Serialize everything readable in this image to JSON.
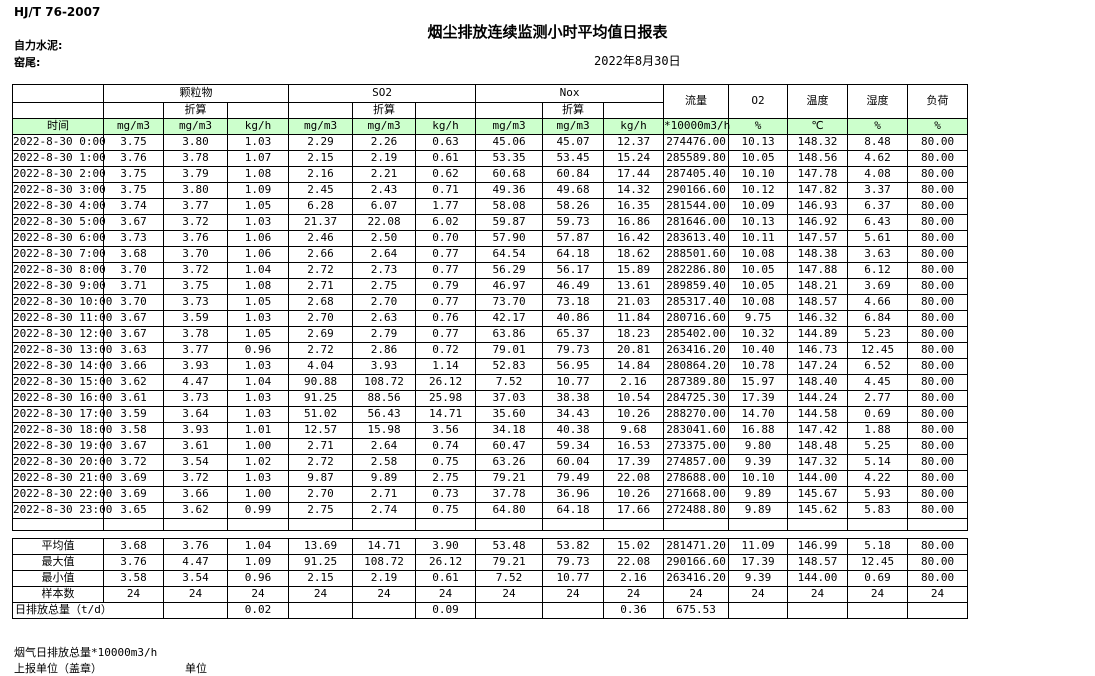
{
  "meta": {
    "standard": "HJ/T  76-2007",
    "title": "烟尘排放连续监测小时平均值日报表",
    "company": "自力水泥:",
    "location": "窑尾:",
    "date": "2022年8月30日"
  },
  "colors": {
    "header_green": "#ccffcc",
    "border": "#000000"
  },
  "table": {
    "time_header": "时间",
    "groups": [
      "颗粒物",
      "SO2",
      "Nox"
    ],
    "converted_label": "折算",
    "single_cols": [
      "流量",
      "O2",
      "温度",
      "湿度",
      "负荷"
    ],
    "units": [
      "mg/m3",
      "mg/m3",
      "kg/h",
      "mg/m3",
      "mg/m3",
      "kg/h",
      "mg/m3",
      "mg/m3",
      "kg/h",
      "*10000m3/h",
      "%",
      "℃",
      "%",
      "%"
    ],
    "rows": [
      {
        "time": "2022-8-30 0:00",
        "values": [
          "3.75",
          "3.80",
          "1.03",
          "2.29",
          "2.26",
          "0.63",
          "45.06",
          "45.07",
          "12.37",
          "274476.00",
          "10.13",
          "148.32",
          "8.48",
          "80.00"
        ]
      },
      {
        "time": "2022-8-30 1:00",
        "values": [
          "3.76",
          "3.78",
          "1.07",
          "2.15",
          "2.19",
          "0.61",
          "53.35",
          "53.45",
          "15.24",
          "285589.80",
          "10.05",
          "148.56",
          "4.62",
          "80.00"
        ]
      },
      {
        "time": "2022-8-30 2:00",
        "values": [
          "3.75",
          "3.79",
          "1.08",
          "2.16",
          "2.21",
          "0.62",
          "60.68",
          "60.84",
          "17.44",
          "287405.40",
          "10.10",
          "147.78",
          "4.08",
          "80.00"
        ]
      },
      {
        "time": "2022-8-30 3:00",
        "values": [
          "3.75",
          "3.80",
          "1.09",
          "2.45",
          "2.43",
          "0.71",
          "49.36",
          "49.68",
          "14.32",
          "290166.60",
          "10.12",
          "147.82",
          "3.37",
          "80.00"
        ]
      },
      {
        "time": "2022-8-30 4:00",
        "values": [
          "3.74",
          "3.77",
          "1.05",
          "6.28",
          "6.07",
          "1.77",
          "58.08",
          "58.26",
          "16.35",
          "281544.00",
          "10.09",
          "146.93",
          "6.37",
          "80.00"
        ]
      },
      {
        "time": "2022-8-30 5:00",
        "values": [
          "3.67",
          "3.72",
          "1.03",
          "21.37",
          "22.08",
          "6.02",
          "59.87",
          "59.73",
          "16.86",
          "281646.00",
          "10.13",
          "146.92",
          "6.43",
          "80.00"
        ]
      },
      {
        "time": "2022-8-30 6:00",
        "values": [
          "3.73",
          "3.76",
          "1.06",
          "2.46",
          "2.50",
          "0.70",
          "57.90",
          "57.87",
          "16.42",
          "283613.40",
          "10.11",
          "147.57",
          "5.61",
          "80.00"
        ]
      },
      {
        "time": "2022-8-30 7:00",
        "values": [
          "3.68",
          "3.70",
          "1.06",
          "2.66",
          "2.64",
          "0.77",
          "64.54",
          "64.18",
          "18.62",
          "288501.60",
          "10.08",
          "148.38",
          "3.63",
          "80.00"
        ]
      },
      {
        "time": "2022-8-30 8:00",
        "values": [
          "3.70",
          "3.72",
          "1.04",
          "2.72",
          "2.73",
          "0.77",
          "56.29",
          "56.17",
          "15.89",
          "282286.80",
          "10.05",
          "147.88",
          "6.12",
          "80.00"
        ]
      },
      {
        "time": "2022-8-30 9:00",
        "values": [
          "3.71",
          "3.75",
          "1.08",
          "2.71",
          "2.75",
          "0.79",
          "46.97",
          "46.49",
          "13.61",
          "289859.40",
          "10.05",
          "148.21",
          "3.69",
          "80.00"
        ]
      },
      {
        "time": "2022-8-30 10:00",
        "values": [
          "3.70",
          "3.73",
          "1.05",
          "2.68",
          "2.70",
          "0.77",
          "73.70",
          "73.18",
          "21.03",
          "285317.40",
          "10.08",
          "148.57",
          "4.66",
          "80.00"
        ]
      },
      {
        "time": "2022-8-30 11:00",
        "values": [
          "3.67",
          "3.59",
          "1.03",
          "2.70",
          "2.63",
          "0.76",
          "42.17",
          "40.86",
          "11.84",
          "280716.60",
          "9.75",
          "146.32",
          "6.84",
          "80.00"
        ]
      },
      {
        "time": "2022-8-30 12:00",
        "values": [
          "3.67",
          "3.78",
          "1.05",
          "2.69",
          "2.79",
          "0.77",
          "63.86",
          "65.37",
          "18.23",
          "285402.00",
          "10.32",
          "144.89",
          "5.23",
          "80.00"
        ]
      },
      {
        "time": "2022-8-30 13:00",
        "values": [
          "3.63",
          "3.77",
          "0.96",
          "2.72",
          "2.86",
          "0.72",
          "79.01",
          "79.73",
          "20.81",
          "263416.20",
          "10.40",
          "146.73",
          "12.45",
          "80.00"
        ]
      },
      {
        "time": "2022-8-30 14:00",
        "values": [
          "3.66",
          "3.93",
          "1.03",
          "4.04",
          "3.93",
          "1.14",
          "52.83",
          "56.95",
          "14.84",
          "280864.20",
          "10.78",
          "147.24",
          "6.52",
          "80.00"
        ]
      },
      {
        "time": "2022-8-30 15:00",
        "values": [
          "3.62",
          "4.47",
          "1.04",
          "90.88",
          "108.72",
          "26.12",
          "7.52",
          "10.77",
          "2.16",
          "287389.80",
          "15.97",
          "148.40",
          "4.45",
          "80.00"
        ]
      },
      {
        "time": "2022-8-30 16:00",
        "values": [
          "3.61",
          "3.73",
          "1.03",
          "91.25",
          "88.56",
          "25.98",
          "37.03",
          "38.38",
          "10.54",
          "284725.30",
          "17.39",
          "144.24",
          "2.77",
          "80.00"
        ]
      },
      {
        "time": "2022-8-30 17:00",
        "values": [
          "3.59",
          "3.64",
          "1.03",
          "51.02",
          "56.43",
          "14.71",
          "35.60",
          "34.43",
          "10.26",
          "288270.00",
          "14.70",
          "144.58",
          "0.69",
          "80.00"
        ]
      },
      {
        "time": "2022-8-30 18:00",
        "values": [
          "3.58",
          "3.93",
          "1.01",
          "12.57",
          "15.98",
          "3.56",
          "34.18",
          "40.38",
          "9.68",
          "283041.60",
          "16.88",
          "147.42",
          "1.88",
          "80.00"
        ]
      },
      {
        "time": "2022-8-30 19:00",
        "values": [
          "3.67",
          "3.61",
          "1.00",
          "2.71",
          "2.64",
          "0.74",
          "60.47",
          "59.34",
          "16.53",
          "273375.00",
          "9.80",
          "148.48",
          "5.25",
          "80.00"
        ]
      },
      {
        "time": "2022-8-30 20:00",
        "values": [
          "3.72",
          "3.54",
          "1.02",
          "2.72",
          "2.58",
          "0.75",
          "63.26",
          "60.04",
          "17.39",
          "274857.00",
          "9.39",
          "147.32",
          "5.14",
          "80.00"
        ]
      },
      {
        "time": "2022-8-30 21:00",
        "values": [
          "3.69",
          "3.72",
          "1.03",
          "9.87",
          "9.89",
          "2.75",
          "79.21",
          "79.49",
          "22.08",
          "278688.00",
          "10.10",
          "144.00",
          "4.22",
          "80.00"
        ]
      },
      {
        "time": "2022-8-30 22:00",
        "values": [
          "3.69",
          "3.66",
          "1.00",
          "2.70",
          "2.71",
          "0.73",
          "37.78",
          "36.96",
          "10.26",
          "271668.00",
          "9.89",
          "145.67",
          "5.93",
          "80.00"
        ]
      },
      {
        "time": "2022-8-30 23:00",
        "values": [
          "3.65",
          "3.62",
          "0.99",
          "2.75",
          "2.74",
          "0.75",
          "64.80",
          "64.18",
          "17.66",
          "272488.80",
          "9.89",
          "145.62",
          "5.83",
          "80.00"
        ]
      }
    ],
    "summary": [
      {
        "label": "平均值",
        "values": [
          "3.68",
          "3.76",
          "1.04",
          "13.69",
          "14.71",
          "3.90",
          "53.48",
          "53.82",
          "15.02",
          "281471.20",
          "11.09",
          "146.99",
          "5.18",
          "80.00"
        ]
      },
      {
        "label": "最大值",
        "values": [
          "3.76",
          "4.47",
          "1.09",
          "91.25",
          "108.72",
          "26.12",
          "79.21",
          "79.73",
          "22.08",
          "290166.60",
          "17.39",
          "148.57",
          "12.45",
          "80.00"
        ]
      },
      {
        "label": "最小值",
        "values": [
          "3.58",
          "3.54",
          "0.96",
          "2.15",
          "2.19",
          "0.61",
          "7.52",
          "10.77",
          "2.16",
          "263416.20",
          "9.39",
          "144.00",
          "0.69",
          "80.00"
        ]
      },
      {
        "label": "样本数",
        "values": [
          "24",
          "24",
          "24",
          "24",
          "24",
          "24",
          "24",
          "24",
          "24",
          "24",
          "24",
          "24",
          "24",
          "24"
        ]
      }
    ],
    "daily_total": {
      "label": "日排放总量（t/d）",
      "values": [
        "",
        "0.02",
        "",
        "",
        "0.09",
        "",
        "",
        "0.36",
        "675.53",
        "",
        "",
        "",
        ""
      ]
    }
  },
  "footer": {
    "flue_total": "烟气日排放总量*10000m3/h",
    "report_unit": "上报单位（盖章）",
    "unit_label": "单位"
  }
}
